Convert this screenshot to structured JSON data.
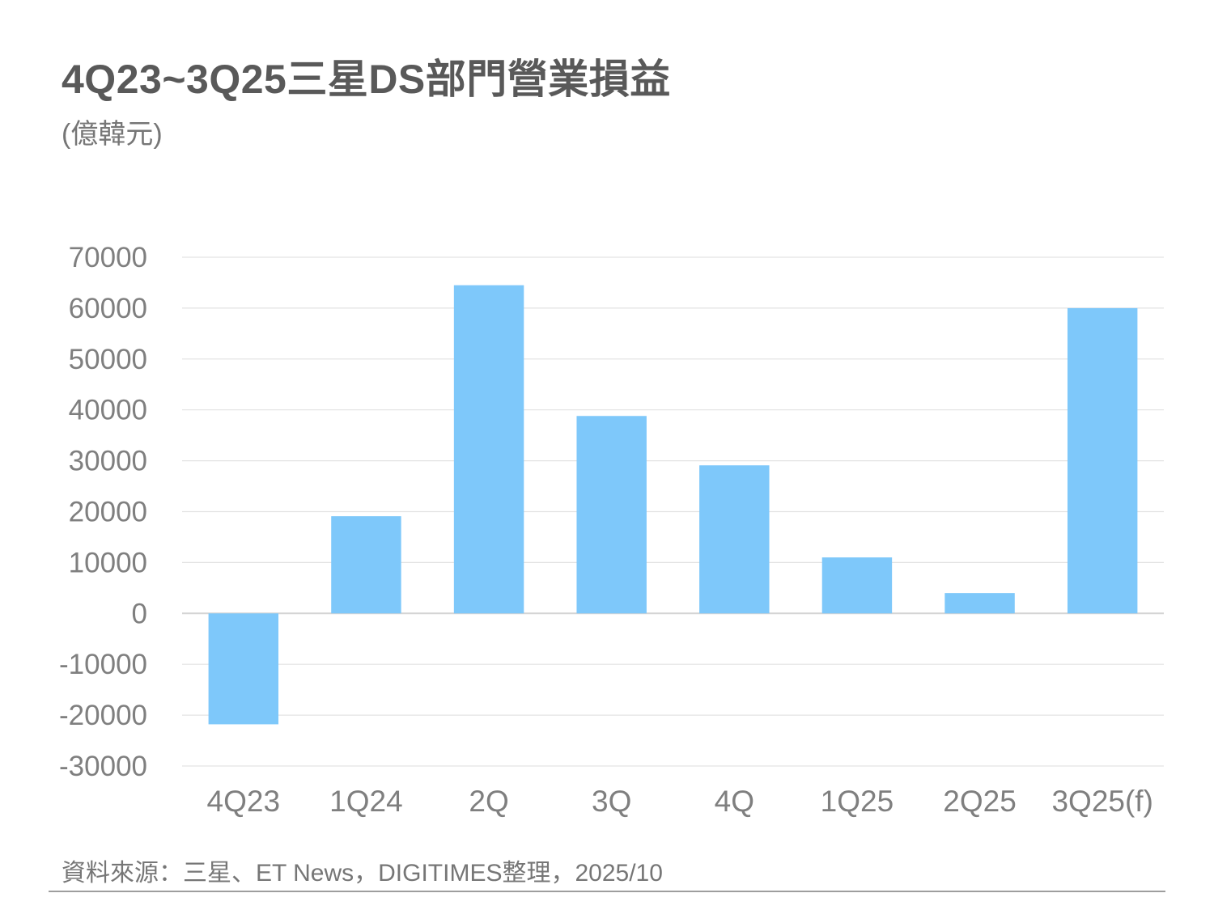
{
  "header": {
    "title": "4Q23~3Q25三星DS部門營業損益",
    "unit": "(億韓元)"
  },
  "footer": {
    "source": "資料來源：三星、ET News，DIGITIMES整理，2025/10"
  },
  "colors": {
    "bar": "#7ec8fa",
    "grid": "#e3e3e3",
    "zero_line": "#d4d4d4",
    "axis_text": "#7f7f7f",
    "title_text": "#595959"
  },
  "chart_data": {
    "type": "bar",
    "categories": [
      "4Q23",
      "1Q24",
      "2Q",
      "3Q",
      "4Q",
      "1Q25",
      "2Q25",
      "3Q25(f)"
    ],
    "values": [
      -21800,
      19100,
      64500,
      38800,
      29100,
      11000,
      4000,
      60000
    ],
    "ylim": [
      -30000,
      70000
    ],
    "yticks": [
      70000,
      60000,
      50000,
      40000,
      30000,
      20000,
      10000,
      0,
      -10000,
      -20000,
      -30000
    ],
    "grid": true,
    "legend": "none"
  }
}
